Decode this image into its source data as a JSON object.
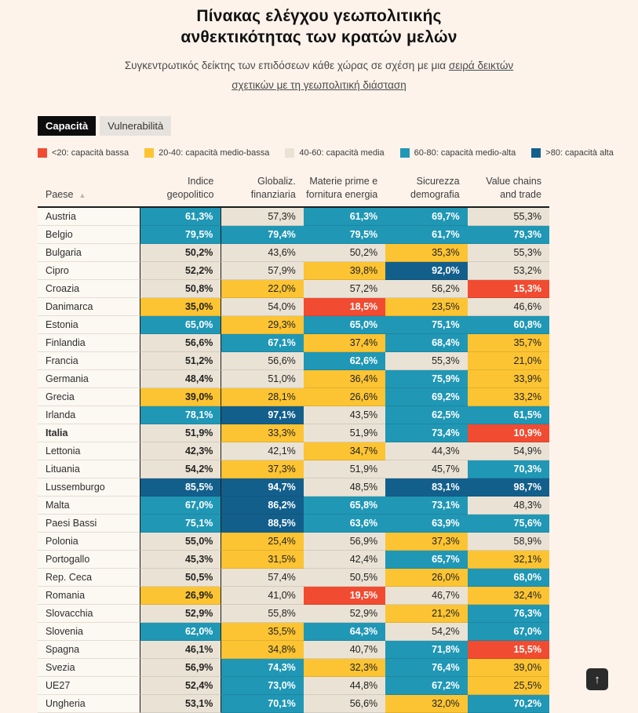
{
  "header": {
    "title_line1": "Πίνακας ελέγχου γεωπολιτικής",
    "title_line2": "ανθεκτικότητας των κρατών μελών",
    "subtitle_prefix": "Συγκεντρωτικός δείκτης των επιδόσεων κάθε χώρας σε σχέση με μια ",
    "subtitle_link1": "σειρά δεικτών",
    "subtitle_link2": "σχετικών με τη γεωπολιτική διάσταση"
  },
  "tabs": [
    {
      "label": "Capacità",
      "active": true
    },
    {
      "label": "Vulnerabilità",
      "active": false
    }
  ],
  "legend": [
    {
      "label": "<20: capacità bassa",
      "color": "#f14b31"
    },
    {
      "label": "20-40: capacità medio-bassa",
      "color": "#fcc433"
    },
    {
      "label": "40-60: capacità media",
      "color": "#eae3d5"
    },
    {
      "label": "60-80: capacità medio-alta",
      "color": "#2097b5"
    },
    {
      "label": ">80: capacità alta",
      "color": "#135f8c"
    }
  ],
  "table": {
    "sort_icon": "▲",
    "columns": [
      "Paese",
      "Indice geopolitico",
      "Globaliz. finanziaria",
      "Materie prime e fornitura energia",
      "Sicurezza demografia",
      "Value chains and trade"
    ],
    "rows": [
      {
        "country": "Austria",
        "bold": false,
        "values": [
          "61,3%",
          "57,3%",
          "61,3%",
          "69,7%",
          "55,3%"
        ]
      },
      {
        "country": "Belgio",
        "bold": false,
        "values": [
          "79,5%",
          "79,4%",
          "79,5%",
          "61,7%",
          "79,3%"
        ]
      },
      {
        "country": "Bulgaria",
        "bold": false,
        "values": [
          "50,2%",
          "43,6%",
          "50,2%",
          "35,3%",
          "55,3%"
        ]
      },
      {
        "country": "Cipro",
        "bold": false,
        "values": [
          "52,2%",
          "57,9%",
          "39,8%",
          "92,0%",
          "53,2%"
        ]
      },
      {
        "country": "Croazia",
        "bold": false,
        "values": [
          "50,8%",
          "22,0%",
          "57,2%",
          "56,2%",
          "15,3%"
        ]
      },
      {
        "country": "Danimarca",
        "bold": false,
        "values": [
          "35,0%",
          "54,0%",
          "18,5%",
          "23,5%",
          "46,6%"
        ]
      },
      {
        "country": "Estonia",
        "bold": false,
        "values": [
          "65,0%",
          "29,3%",
          "65,0%",
          "75,1%",
          "60,8%"
        ]
      },
      {
        "country": "Finlandia",
        "bold": false,
        "values": [
          "56,6%",
          "67,1%",
          "37,4%",
          "68,4%",
          "35,7%"
        ]
      },
      {
        "country": "Francia",
        "bold": false,
        "values": [
          "51,2%",
          "56,6%",
          "62,6%",
          "55,3%",
          "21,0%"
        ]
      },
      {
        "country": "Germania",
        "bold": false,
        "values": [
          "48,4%",
          "51,0%",
          "36,4%",
          "75,9%",
          "33,9%"
        ]
      },
      {
        "country": "Grecia",
        "bold": false,
        "values": [
          "39,0%",
          "28,1%",
          "26,6%",
          "69,2%",
          "33,2%"
        ]
      },
      {
        "country": "Irlanda",
        "bold": false,
        "values": [
          "78,1%",
          "97,1%",
          "43,5%",
          "62,5%",
          "61,5%"
        ]
      },
      {
        "country": "Italia",
        "bold": true,
        "values": [
          "51,9%",
          "33,3%",
          "51,9%",
          "73,4%",
          "10,9%"
        ]
      },
      {
        "country": "Lettonia",
        "bold": false,
        "values": [
          "42,3%",
          "42,1%",
          "34,7%",
          "44,3%",
          "54,9%"
        ]
      },
      {
        "country": "Lituania",
        "bold": false,
        "values": [
          "54,2%",
          "37,3%",
          "51,9%",
          "45,7%",
          "70,3%"
        ]
      },
      {
        "country": "Lussemburgo",
        "bold": false,
        "values": [
          "85,5%",
          "94,7%",
          "48,5%",
          "83,1%",
          "98,7%"
        ]
      },
      {
        "country": "Malta",
        "bold": false,
        "values": [
          "67,0%",
          "86,2%",
          "65,8%",
          "73,1%",
          "48,3%"
        ]
      },
      {
        "country": "Paesi Bassi",
        "bold": false,
        "values": [
          "75,1%",
          "88,5%",
          "63,6%",
          "63,9%",
          "75,6%"
        ]
      },
      {
        "country": "Polonia",
        "bold": false,
        "values": [
          "55,0%",
          "25,4%",
          "56,9%",
          "37,3%",
          "58,9%"
        ]
      },
      {
        "country": "Portogallo",
        "bold": false,
        "values": [
          "45,3%",
          "31,5%",
          "42,4%",
          "65,7%",
          "32,1%"
        ]
      },
      {
        "country": "Rep. Ceca",
        "bold": false,
        "values": [
          "50,5%",
          "57,4%",
          "50,5%",
          "26,0%",
          "68,0%"
        ]
      },
      {
        "country": "Romania",
        "bold": false,
        "values": [
          "26,9%",
          "41,0%",
          "19,5%",
          "46,7%",
          "32,4%"
        ]
      },
      {
        "country": "Slovacchia",
        "bold": false,
        "values": [
          "52,9%",
          "55,8%",
          "52,9%",
          "21,2%",
          "76,3%"
        ]
      },
      {
        "country": "Slovenia",
        "bold": false,
        "values": [
          "62,0%",
          "35,5%",
          "64,3%",
          "54,2%",
          "67,0%"
        ]
      },
      {
        "country": "Spagna",
        "bold": false,
        "values": [
          "46,1%",
          "34,8%",
          "40,7%",
          "71,8%",
          "15,5%"
        ]
      },
      {
        "country": "Svezia",
        "bold": false,
        "values": [
          "56,9%",
          "74,3%",
          "32,3%",
          "76,4%",
          "39,0%"
        ]
      },
      {
        "country": "UE27",
        "bold": false,
        "values": [
          "52,4%",
          "73,0%",
          "44,8%",
          "67,2%",
          "25,5%"
        ]
      },
      {
        "country": "Ungheria",
        "bold": false,
        "values": [
          "53,1%",
          "70,1%",
          "56,6%",
          "32,0%",
          "70,2%"
        ]
      }
    ]
  },
  "chart_data": {
    "type": "heatmap",
    "title": "Πίνακας ελέγχου γεωπολιτικής ανθεκτικότητας των κρατών μελών",
    "subtitle": "Συγκεντρωτικός δείκτης των επιδόσεων κάθε χώρας σε σχέση με μια σειρά δεικτών σχετικών με τη γεωπολιτική διάσταση",
    "active_view": "Capacità",
    "columns": [
      "Indice geopolitico",
      "Globaliz. finanziaria",
      "Materie prime e fornitura energia",
      "Sicurezza demografia",
      "Value chains and trade"
    ],
    "rows": [
      "Austria",
      "Belgio",
      "Bulgaria",
      "Cipro",
      "Croazia",
      "Danimarca",
      "Estonia",
      "Finlandia",
      "Francia",
      "Germania",
      "Grecia",
      "Irlanda",
      "Italia",
      "Lettonia",
      "Lituania",
      "Lussemburgo",
      "Malta",
      "Paesi Bassi",
      "Polonia",
      "Portogallo",
      "Rep. Ceca",
      "Romania",
      "Slovacchia",
      "Slovenia",
      "Spagna",
      "Svezia",
      "UE27",
      "Ungheria"
    ],
    "values": [
      [
        61.3,
        57.3,
        61.3,
        69.7,
        55.3
      ],
      [
        79.5,
        79.4,
        79.5,
        61.7,
        79.3
      ],
      [
        50.2,
        43.6,
        50.2,
        35.3,
        55.3
      ],
      [
        52.2,
        57.9,
        39.8,
        92.0,
        53.2
      ],
      [
        50.8,
        22.0,
        57.2,
        56.2,
        15.3
      ],
      [
        35.0,
        54.0,
        18.5,
        23.5,
        46.6
      ],
      [
        65.0,
        29.3,
        65.0,
        75.1,
        60.8
      ],
      [
        56.6,
        67.1,
        37.4,
        68.4,
        35.7
      ],
      [
        51.2,
        56.6,
        62.6,
        55.3,
        21.0
      ],
      [
        48.4,
        51.0,
        36.4,
        75.9,
        33.9
      ],
      [
        39.0,
        28.1,
        26.6,
        69.2,
        33.2
      ],
      [
        78.1,
        97.1,
        43.5,
        62.5,
        61.5
      ],
      [
        51.9,
        33.3,
        51.9,
        73.4,
        10.9
      ],
      [
        42.3,
        42.1,
        34.7,
        44.3,
        54.9
      ],
      [
        54.2,
        37.3,
        51.9,
        45.7,
        70.3
      ],
      [
        85.5,
        94.7,
        48.5,
        83.1,
        98.7
      ],
      [
        67.0,
        86.2,
        65.8,
        73.1,
        48.3
      ],
      [
        75.1,
        88.5,
        63.6,
        63.9,
        75.6
      ],
      [
        55.0,
        25.4,
        56.9,
        37.3,
        58.9
      ],
      [
        45.3,
        31.5,
        42.4,
        65.7,
        32.1
      ],
      [
        50.5,
        57.4,
        50.5,
        26.0,
        68.0
      ],
      [
        26.9,
        41.0,
        19.5,
        46.7,
        32.4
      ],
      [
        52.9,
        55.8,
        52.9,
        21.2,
        76.3
      ],
      [
        62.0,
        35.5,
        64.3,
        54.2,
        67.0
      ],
      [
        46.1,
        34.8,
        40.7,
        71.8,
        15.5
      ],
      [
        56.9,
        74.3,
        32.3,
        76.4,
        39.0
      ],
      [
        52.4,
        73.0,
        44.8,
        67.2,
        25.5
      ],
      [
        53.1,
        70.1,
        56.6,
        32.0,
        70.2
      ]
    ],
    "unit": "%",
    "color_bins": [
      {
        "range": "<20",
        "label": "capacità bassa",
        "color": "#f14b31"
      },
      {
        "range": "20-40",
        "label": "capacità medio-bassa",
        "color": "#fcc433"
      },
      {
        "range": "40-60",
        "label": "capacità media",
        "color": "#eae3d5"
      },
      {
        "range": "60-80",
        "label": "capacità medio-alta",
        "color": "#2097b5"
      },
      {
        "range": ">80",
        "label": "capacità alta",
        "color": "#135f8c"
      }
    ]
  },
  "scroll_top": {
    "icon": "↑"
  }
}
